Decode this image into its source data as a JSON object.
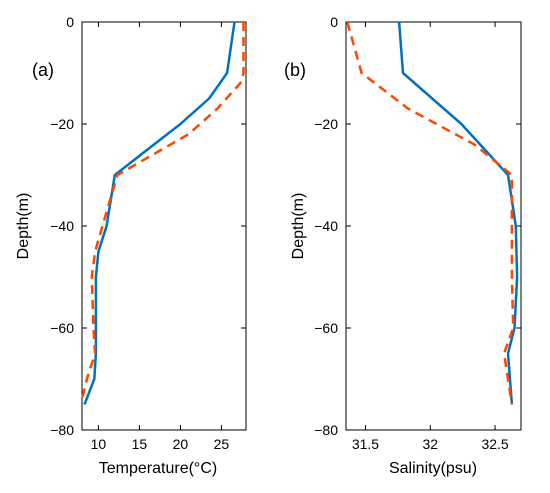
{
  "colors": {
    "series_solid": "#0072BD",
    "series_dashed": "#FF4500",
    "axis": "#000000",
    "background": "#ffffff"
  },
  "chart_data": [
    {
      "type": "line",
      "panel_label": "(a)",
      "xlabel": "Temperature(°C)",
      "ylabel": "Depth(m)",
      "xlim": [
        8,
        28
      ],
      "ylim": [
        -80,
        0
      ],
      "xticks": [
        10,
        15,
        20,
        25
      ],
      "xtick_labels": [
        "10",
        "15",
        "20",
        "25"
      ],
      "yticks": [
        0,
        -20,
        -40,
        -60,
        -80
      ],
      "ytick_labels": [
        "0",
        "−20",
        "−40",
        "−60",
        "−80"
      ],
      "grid": false,
      "series": [
        {
          "style": "solid",
          "color": "#0072BD",
          "x": [
            26.6,
            25.7,
            23.5,
            20.0,
            12.0,
            11.0,
            10.0,
            9.7,
            9.7,
            9.7,
            9.5,
            8.3
          ],
          "y": [
            0,
            -10,
            -15,
            -20,
            -30,
            -40,
            -45,
            -50,
            -60,
            -65,
            -70,
            -75
          ]
        },
        {
          "style": "dashed",
          "color": "#FF4500",
          "x": [
            27.7,
            27.7,
            27.3,
            24.5,
            21.0,
            12.3,
            10.5,
            9.6,
            9.2,
            9.4,
            9.6,
            8.6,
            8.0
          ],
          "y": [
            0,
            -10,
            -12,
            -17,
            -22,
            -30,
            -40,
            -45,
            -50,
            -60,
            -65,
            -70,
            -74
          ]
        }
      ]
    },
    {
      "type": "line",
      "panel_label": "(b)",
      "xlabel": "Salinity(psu)",
      "ylabel": "Depth(m)",
      "xlim": [
        31.35,
        32.7
      ],
      "ylim": [
        -80,
        0
      ],
      "xticks": [
        31.5,
        32,
        32.5
      ],
      "xtick_labels": [
        "31.5",
        "32",
        "32.5"
      ],
      "yticks": [
        0,
        -20,
        -40,
        -60,
        -80
      ],
      "ytick_labels": [
        "0",
        "−20",
        "−40",
        "−60",
        "−80"
      ],
      "grid": false,
      "series": [
        {
          "style": "solid",
          "color": "#0072BD",
          "x": [
            31.76,
            31.79,
            32.24,
            32.6,
            32.66,
            32.67,
            32.65,
            32.6,
            32.63
          ],
          "y": [
            0,
            -10,
            -20,
            -30,
            -40,
            -50,
            -60,
            -65,
            -75
          ]
        },
        {
          "style": "dashed",
          "color": "#FF4500",
          "x": [
            31.36,
            31.47,
            31.83,
            32.34,
            32.63,
            32.63,
            32.63,
            32.64,
            32.57,
            32.63
          ],
          "y": [
            0,
            -10,
            -17,
            -24,
            -30,
            -40,
            -50,
            -60,
            -65,
            -75
          ]
        }
      ]
    }
  ]
}
